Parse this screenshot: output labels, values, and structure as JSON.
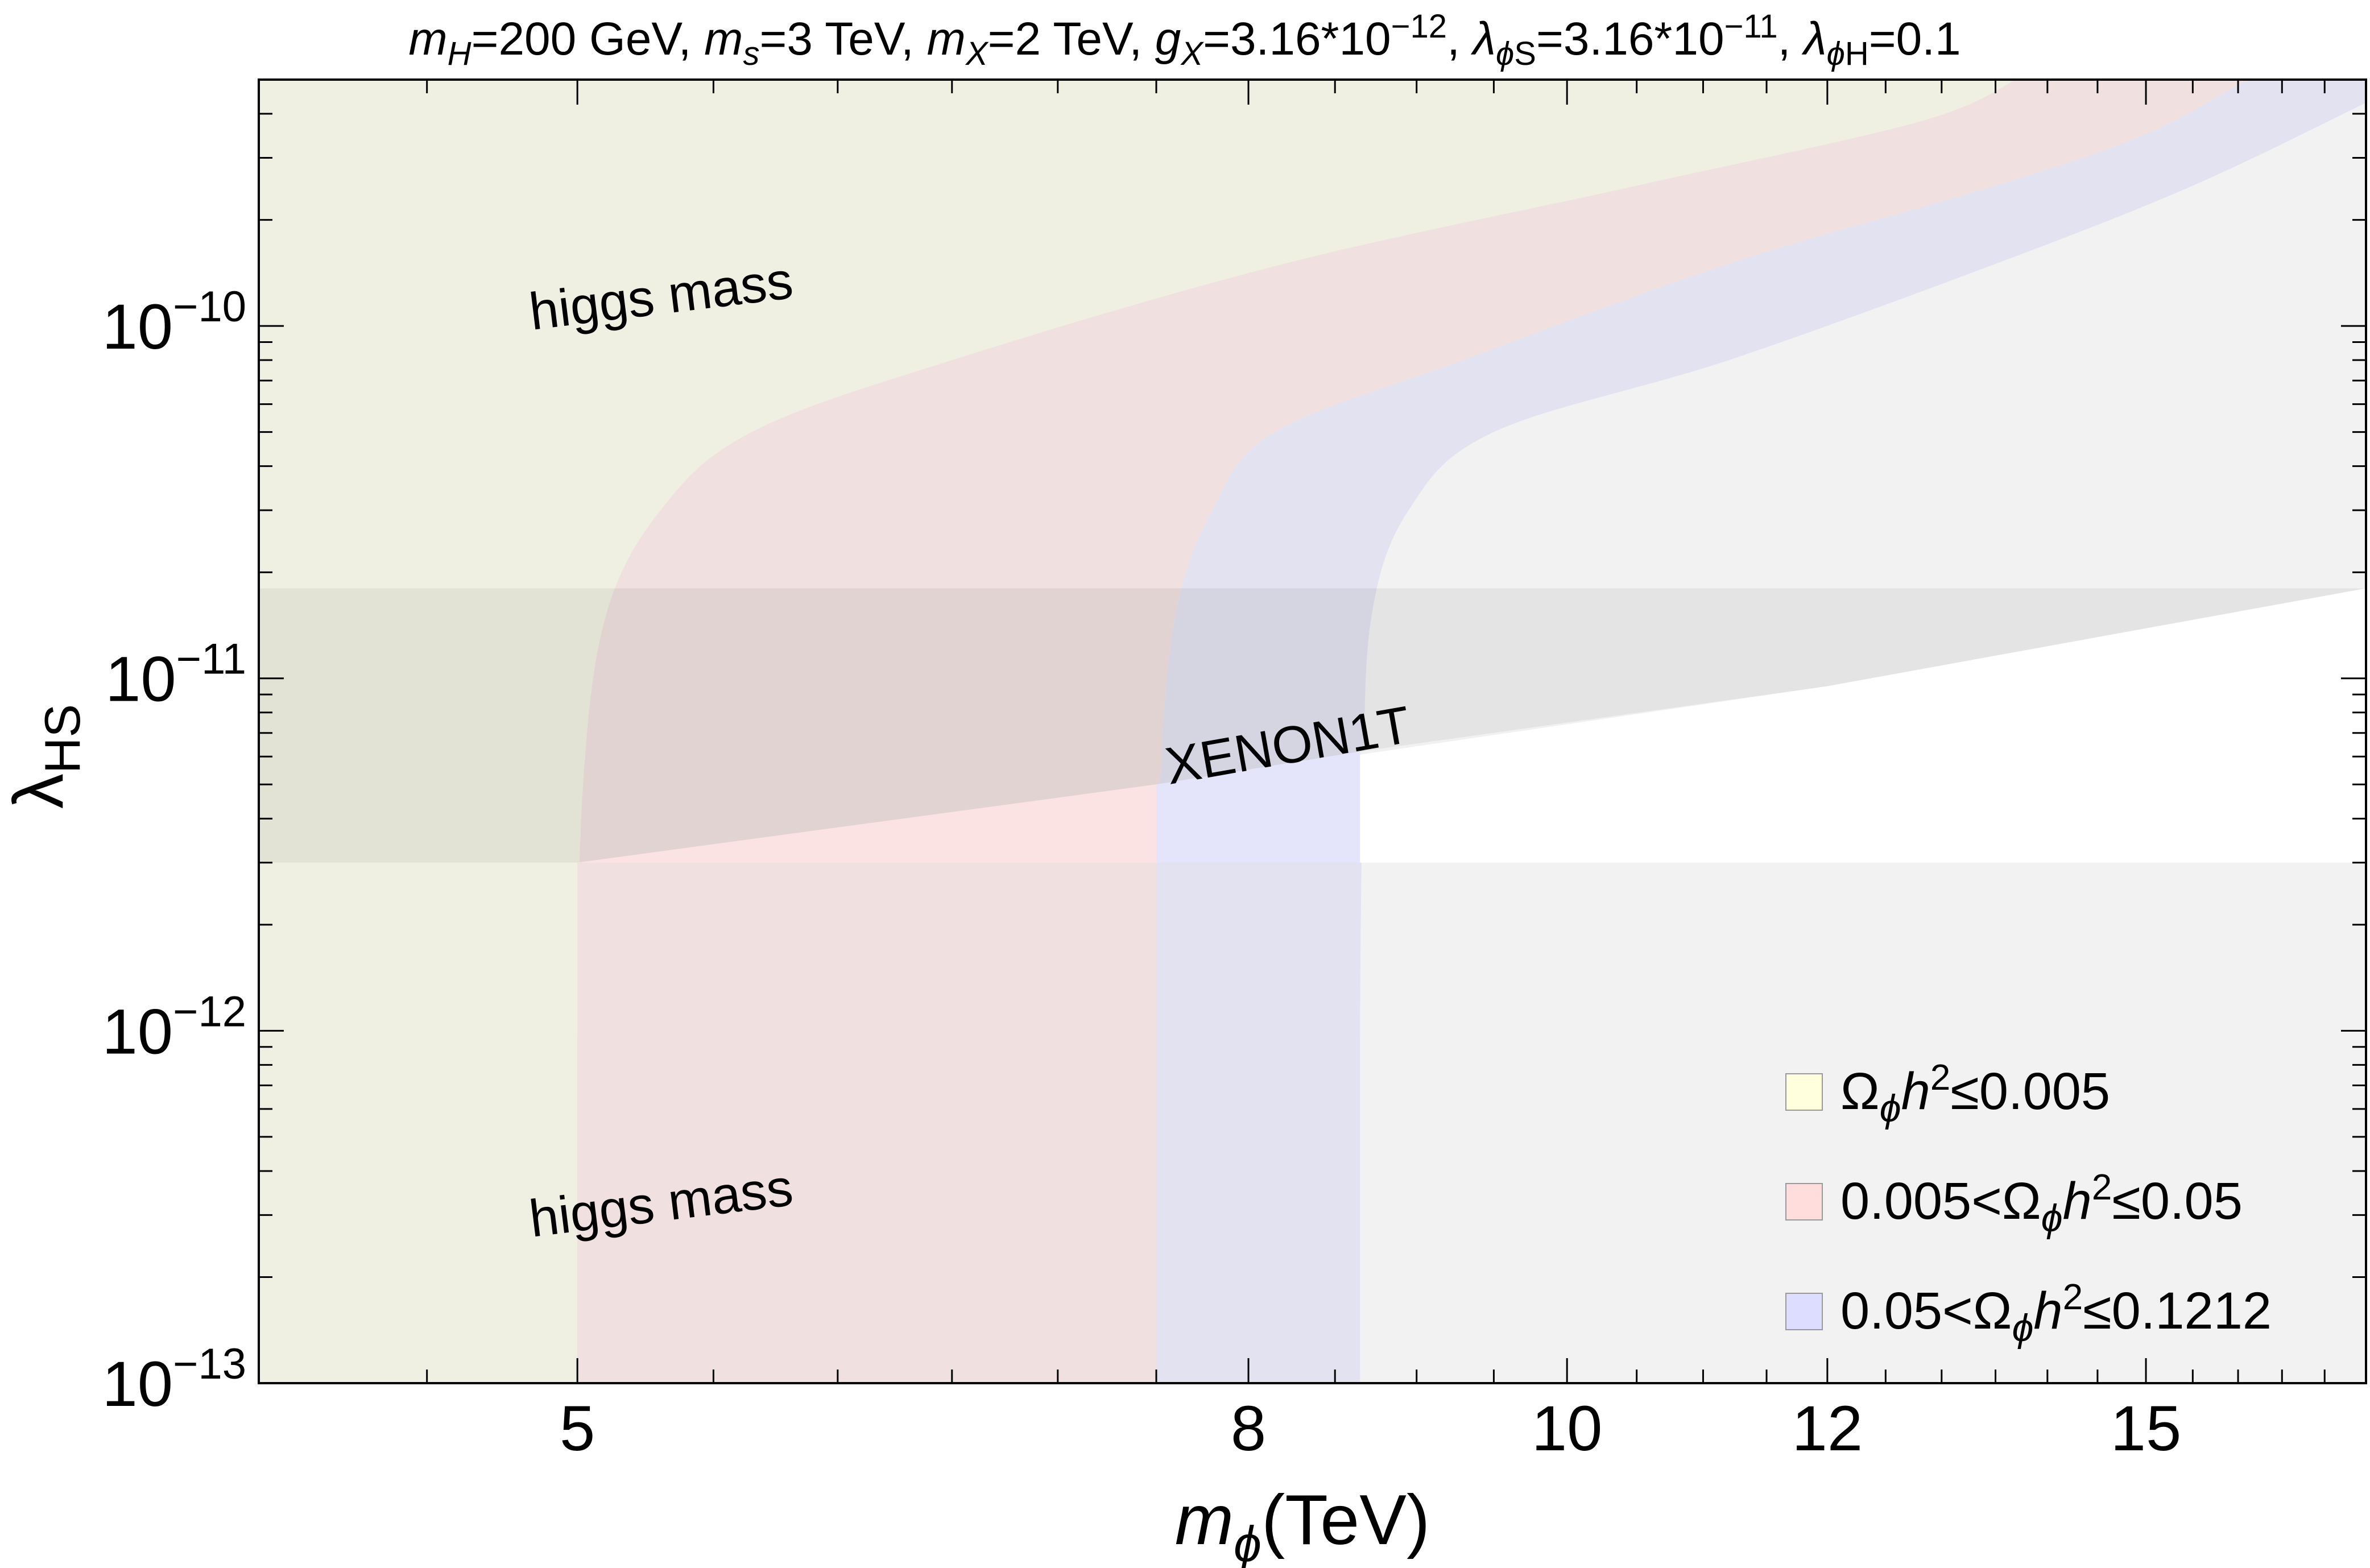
{
  "chart_data": {
    "type": "area",
    "title": {
      "mH": {
        "sym": "m",
        "sub": "H",
        "val": "=200 GeV, "
      },
      "ms": {
        "sym": "m",
        "sub": "s",
        "val": "=3 TeV, "
      },
      "mX": {
        "sym": "m",
        "sub": "X",
        "val": "=2 TeV, "
      },
      "gX": {
        "sym": "g",
        "sub": "X",
        "val": "=3.16*10",
        "sup": "−12",
        "tail": ", "
      },
      "lphiS": {
        "sym": "λ",
        "sub1": "ϕ",
        "sub2": "S",
        "val": "=3.16*10",
        "sup": "−11",
        "tail": ", "
      },
      "lphiH": {
        "sym": "λ",
        "sub1": "ϕ",
        "sub2": "H",
        "val": "=0.1"
      }
    },
    "xlabel": {
      "sym": "m",
      "sub": "ϕ",
      "rest": "(TeV)"
    },
    "ylabel": {
      "sym": "λ",
      "sub": "HS"
    },
    "x_scale": "log",
    "y_scale": "log",
    "xlim": [
      4.0,
      17.5
    ],
    "ylim": [
      1e-13,
      5e-10
    ],
    "x_ticks": [
      {
        "value": 5,
        "label": "5"
      },
      {
        "value": 8,
        "label": "8"
      },
      {
        "value": 10,
        "label": "10"
      },
      {
        "value": 12,
        "label": "12"
      },
      {
        "value": 15,
        "label": "15"
      }
    ],
    "y_ticks": [
      {
        "value": 1e-13,
        "base": "10",
        "exp": "−13"
      },
      {
        "value": 1e-12,
        "base": "10",
        "exp": "−12"
      },
      {
        "value": 1e-11,
        "base": "10",
        "exp": "−11"
      },
      {
        "value": 1e-10,
        "base": "10",
        "exp": "−10"
      }
    ],
    "regions": [
      {
        "name": "Ωϕh²≤0.005",
        "color": "#f0f0e2",
        "legend_color": "#ffffdd",
        "boundary": "x < 5.0 (vertical) bending to upper-left above 2e-11"
      },
      {
        "name": "0.005<Ωϕh²≤0.05",
        "color": "#f0e0e0",
        "legend_color": "#ffdddd",
        "boundary": "5.0 ≤ x < 7.5"
      },
      {
        "name": "0.05<Ωϕh²≤0.1212",
        "color": "#e2e2f0",
        "legend_color": "#ddddff",
        "boundary": "7.5 ≤ x < 8.65"
      }
    ],
    "band_edges": [
      {
        "region": "yellow-pink",
        "points": [
          [
            5.0,
            1e-13
          ],
          [
            5.0,
            1e-12
          ],
          [
            5.02,
            5e-12
          ],
          [
            5.1,
            1.5e-11
          ],
          [
            5.3,
            3e-11
          ],
          [
            5.65,
            5e-11
          ],
          [
            6.5,
            8e-11
          ],
          [
            8.2,
            1.5e-10
          ],
          [
            10.5,
            2.5e-10
          ],
          [
            12.8,
            3.8e-10
          ],
          [
            13.7,
            5e-10
          ]
        ]
      },
      {
        "region": "pink-blue",
        "points": [
          [
            7.5,
            1e-13
          ],
          [
            7.5,
            1e-12
          ],
          [
            7.52,
            5e-12
          ],
          [
            7.6,
            1.5e-11
          ],
          [
            7.8,
            3e-11
          ],
          [
            8.15,
            5e-11
          ],
          [
            9.3,
            8e-11
          ],
          [
            11.2,
            1.5e-10
          ],
          [
            13.5,
            2.5e-10
          ],
          [
            15.0,
            3.5e-10
          ],
          [
            16.1,
            5e-10
          ]
        ]
      },
      {
        "region": "blue-gray",
        "points": [
          [
            8.65,
            1e-13
          ],
          [
            8.65,
            1e-12
          ],
          [
            8.67,
            5e-12
          ],
          [
            8.72,
            1.5e-11
          ],
          [
            8.95,
            3e-11
          ],
          [
            9.5,
            5e-11
          ],
          [
            11.2,
            8e-11
          ],
          [
            13.5,
            1.5e-10
          ],
          [
            15.5,
            2.5e-10
          ],
          [
            17.5,
            4.3e-10
          ]
        ]
      }
    ],
    "excluded": [
      {
        "name": "higgs mass (upper)",
        "y_min": 1.8e-11,
        "color": "#f2f2f2"
      },
      {
        "name": "higgs mass (lower)",
        "y_max": 3e-12,
        "color": "#f2f2f2"
      },
      {
        "name": "XENON1T",
        "color": "#e6e6e6",
        "boundary": [
          [
            4.0,
            3e-12
          ],
          [
            5.0,
            3e-12
          ],
          [
            7.5,
            5e-12
          ],
          [
            12.0,
            9.5e-12
          ],
          [
            17.5,
            1.8e-11
          ]
        ]
      }
    ],
    "annotations": [
      {
        "text": "higgs mass",
        "x": 5.0,
        "y": 1.05e-10,
        "angle": -7
      },
      {
        "text": "higgs mass",
        "x": 5.0,
        "y": 2.8e-13,
        "angle": -7
      },
      {
        "text": "XENON1T",
        "x": 8.0,
        "y": 5.6e-12,
        "angle": -10
      }
    ],
    "legend": {
      "position": "bottom-right",
      "entries": [
        {
          "color": "#ffffdd",
          "parts": [
            {
              "t": "Ω"
            },
            {
              "t": "ϕ",
              "sub": true,
              "it": true
            },
            {
              "t": "h",
              "it": true
            },
            {
              "t": "2",
              "sup": true
            },
            {
              "t": "≤0.005"
            }
          ]
        },
        {
          "color": "#ffdddd",
          "parts": [
            {
              "t": "0.005<Ω"
            },
            {
              "t": "ϕ",
              "sub": true,
              "it": true
            },
            {
              "t": "h",
              "it": true
            },
            {
              "t": "2",
              "sup": true
            },
            {
              "t": "≤0.05"
            }
          ]
        },
        {
          "color": "#ddddff",
          "parts": [
            {
              "t": "0.05<Ω"
            },
            {
              "t": "ϕ",
              "sub": true,
              "it": true
            },
            {
              "t": "h",
              "it": true
            },
            {
              "t": "2",
              "sup": true
            },
            {
              "t": "≤0.1212"
            }
          ]
        }
      ]
    },
    "grid": false
  }
}
